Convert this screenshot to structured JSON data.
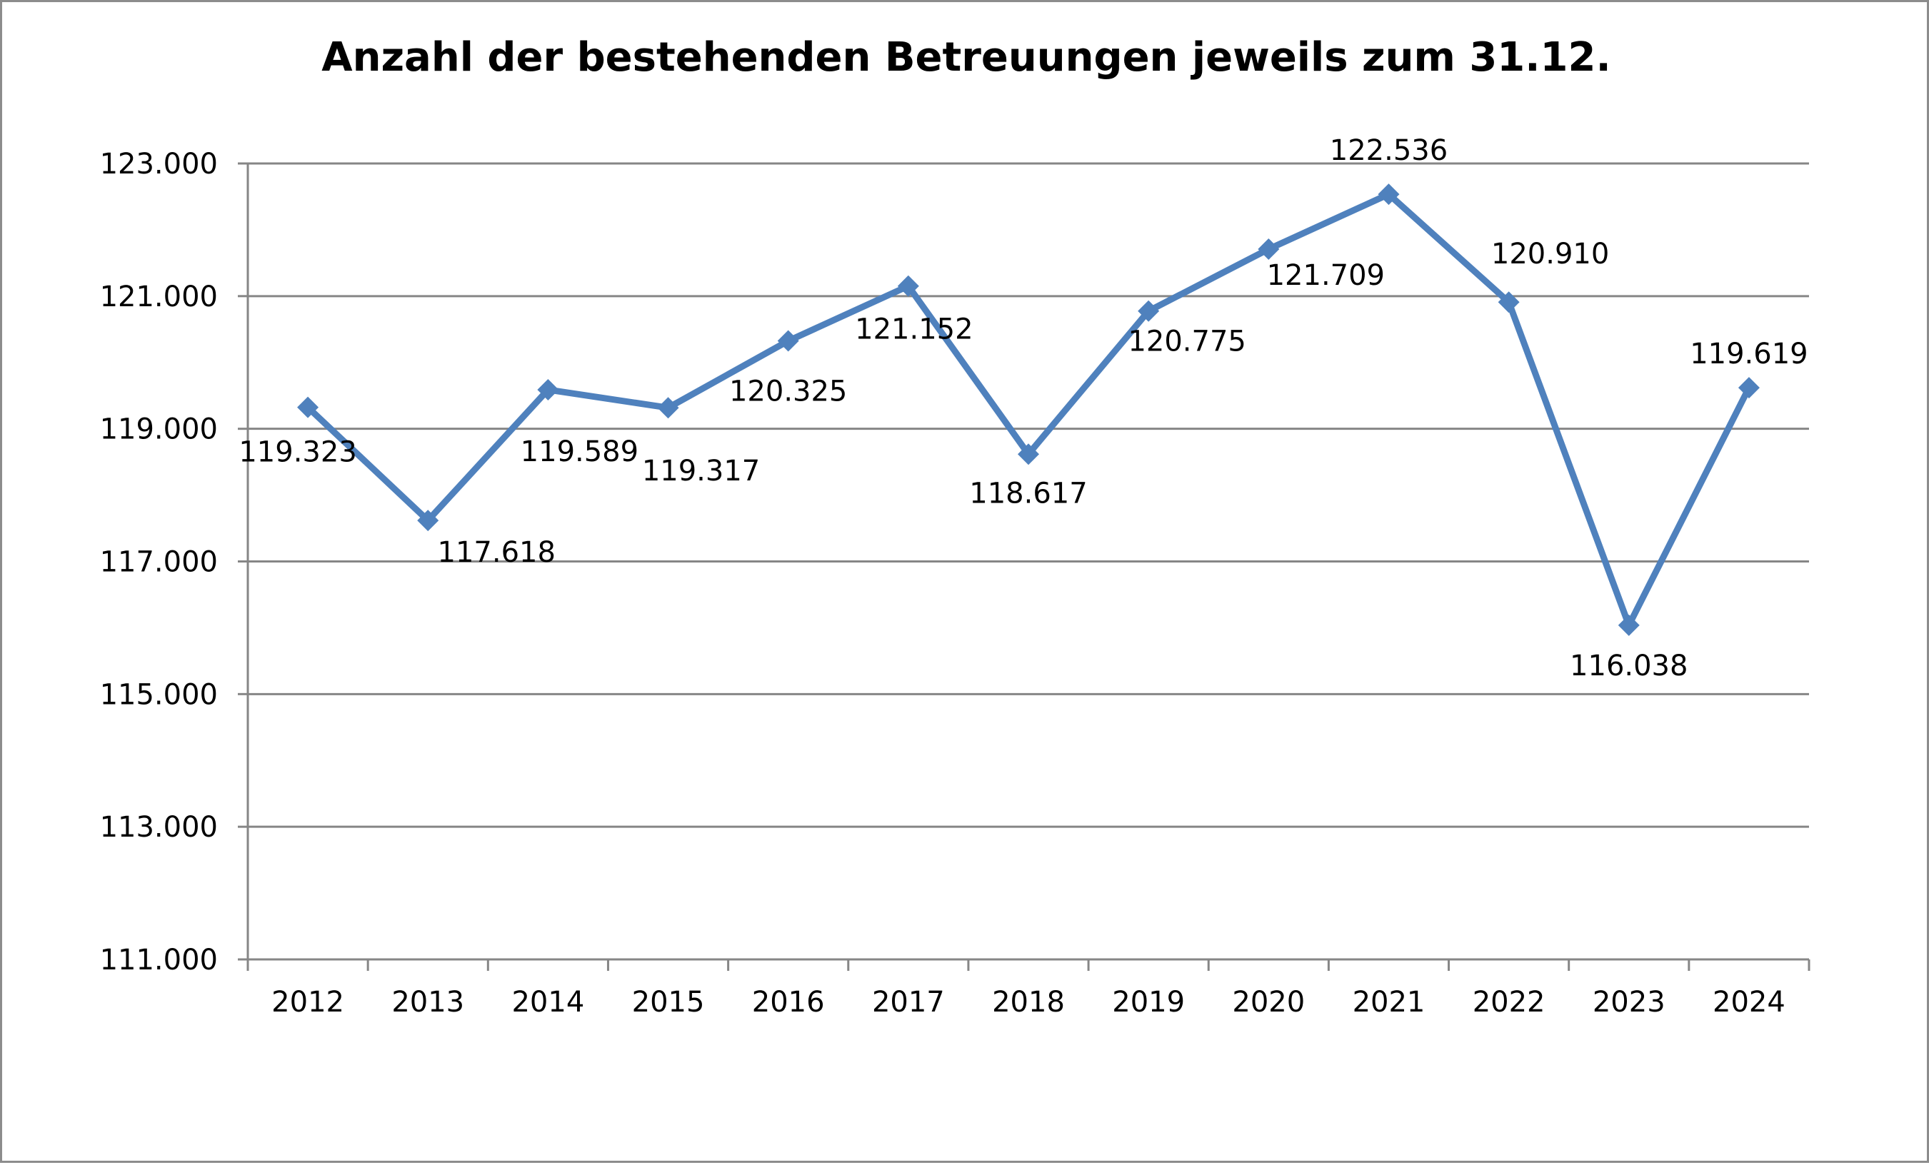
{
  "chart_data": {
    "type": "line",
    "title": "Anzahl der bestehenden Betreuungen jeweils zum 31.12.",
    "xlabel": "",
    "ylabel": "",
    "categories": [
      "2012",
      "2013",
      "2014",
      "2015",
      "2016",
      "2017",
      "2018",
      "2019",
      "2020",
      "2021",
      "2022",
      "2023",
      "2024"
    ],
    "series": [
      {
        "values": [
          119323,
          117618,
          119589,
          119317,
          120325,
          121152,
          118617,
          120775,
          121709,
          122536,
          120910,
          116038,
          119619
        ],
        "labels": [
          "119.323",
          "117.618",
          "119.589",
          "119.317",
          "120.325",
          "121.152",
          "118.617",
          "120.775",
          "121.709",
          "122.536",
          "120.910",
          "116.038",
          "119.619"
        ],
        "color": "#4f81bd",
        "marker": "diamond"
      }
    ],
    "ylim": [
      111000,
      123000
    ],
    "yticks": [
      111000,
      113000,
      115000,
      117000,
      119000,
      121000,
      123000
    ],
    "ytick_labels": [
      "111.000",
      "113.000",
      "115.000",
      "117.000",
      "119.000",
      "121.000",
      "123.000"
    ],
    "grid": true,
    "gridline_color": "#868686",
    "legend": "none"
  }
}
